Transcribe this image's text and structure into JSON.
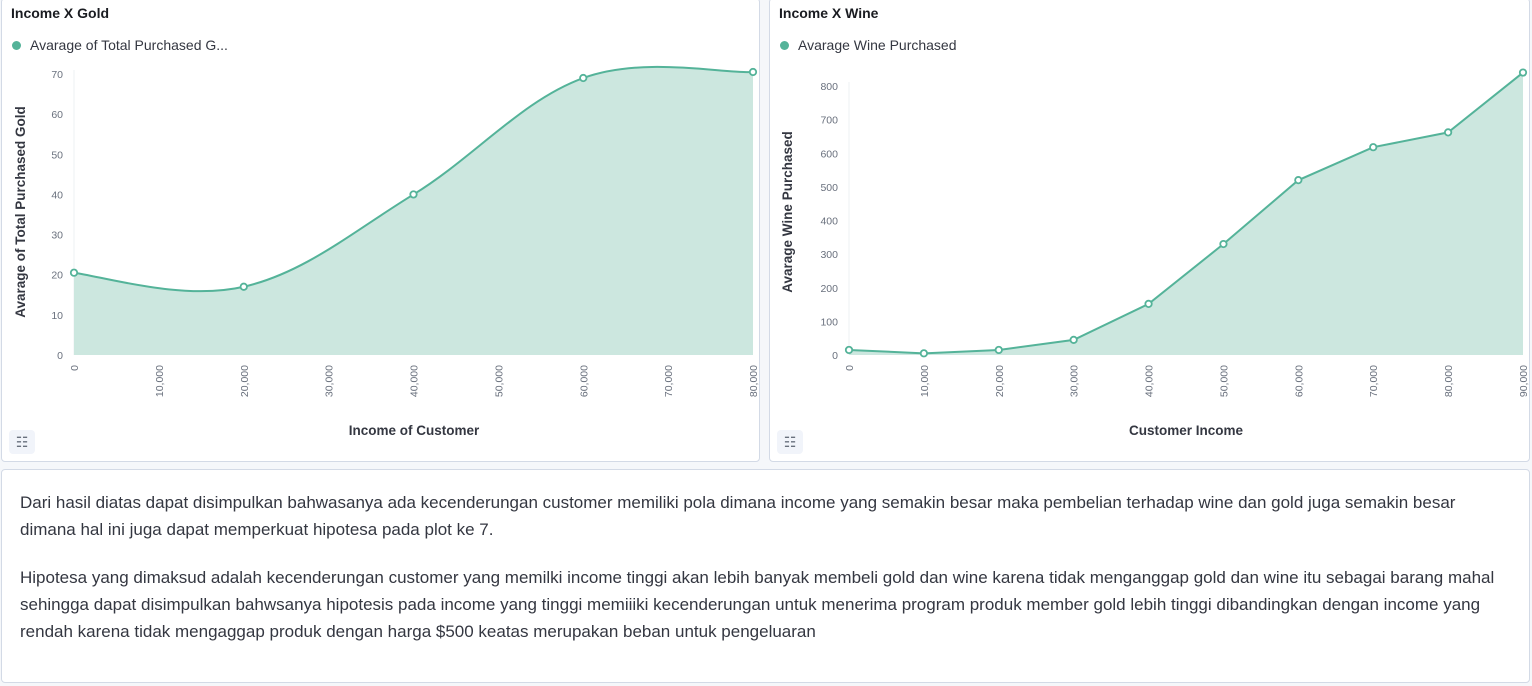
{
  "colors": {
    "series": "#54b399",
    "area": "#cce7df",
    "axis": "#69707d"
  },
  "panels": {
    "gold": {
      "title": "Income X Gold",
      "legend": "Avarage of Total Purchased G...",
      "inspect_icon": "list-icon"
    },
    "wine": {
      "title": "Income X Wine",
      "legend": "Avarage Wine Purchased",
      "inspect_icon": "list-icon"
    }
  },
  "chart_data": [
    {
      "type": "area",
      "title": "Income X Gold",
      "xlabel": "Income of Customer",
      "ylabel": "Avarage of Total Purchased Gold",
      "series": [
        {
          "name": "Avarage of Total Purchased G...",
          "x": [
            0,
            20000,
            40000,
            60000,
            80000
          ],
          "values": [
            20.5,
            17,
            40,
            69,
            70.5
          ]
        }
      ],
      "x_ticks": [
        "0",
        "10,000",
        "20,000",
        "30,000",
        "40,000",
        "50,000",
        "60,000",
        "70,000",
        "80,000"
      ],
      "y_ticks": [
        "0",
        "10",
        "20",
        "30",
        "40",
        "50",
        "60",
        "70"
      ],
      "xlim": [
        0,
        80000
      ],
      "ylim": [
        0,
        70
      ],
      "curve": "smooth",
      "grid": false,
      "legend_position": "top-left"
    },
    {
      "type": "area",
      "title": "Income X Wine",
      "xlabel": "Customer Income",
      "ylabel": "Avarage Wine Purchased",
      "series": [
        {
          "name": "Avarage Wine Purchased",
          "x": [
            0,
            10000,
            20000,
            30000,
            40000,
            50000,
            60000,
            70000,
            80000,
            90000
          ],
          "values": [
            15,
            5,
            15,
            45,
            152,
            330,
            520,
            618,
            662,
            840
          ]
        }
      ],
      "x_ticks": [
        "0",
        "10,000",
        "20,000",
        "30,000",
        "40,000",
        "50,000",
        "60,000",
        "70,000",
        "80,000",
        "90,000"
      ],
      "y_ticks": [
        "0",
        "100",
        "200",
        "300",
        "400",
        "500",
        "600",
        "700",
        "800"
      ],
      "xlim": [
        0,
        90000
      ],
      "ylim": [
        0,
        800
      ],
      "curve": "linear",
      "grid": false,
      "legend_position": "top-left"
    }
  ],
  "text_panel": {
    "paragraphs": [
      "Dari hasil diatas dapat disimpulkan bahwasanya ada kecenderungan customer memiliki pola dimana income yang semakin besar maka pembelian terhadap wine dan gold juga semakin besar dimana hal ini juga dapat memperkuat hipotesa pada plot ke 7.",
      "Hipotesa yang dimaksud adalah kecenderungan customer yang memilki income tinggi akan lebih banyak membeli gold dan wine karena tidak menganggap gold dan wine itu sebagai barang mahal sehingga dapat disimpulkan bahwsanya hipotesis pada income yang tinggi memiiiki kecenderungan untuk menerima program produk member gold lebih tinggi dibandingkan dengan income yang rendah karena tidak mengaggap produk dengan harga $500 keatas merupakan beban untuk pengeluaran"
    ]
  }
}
